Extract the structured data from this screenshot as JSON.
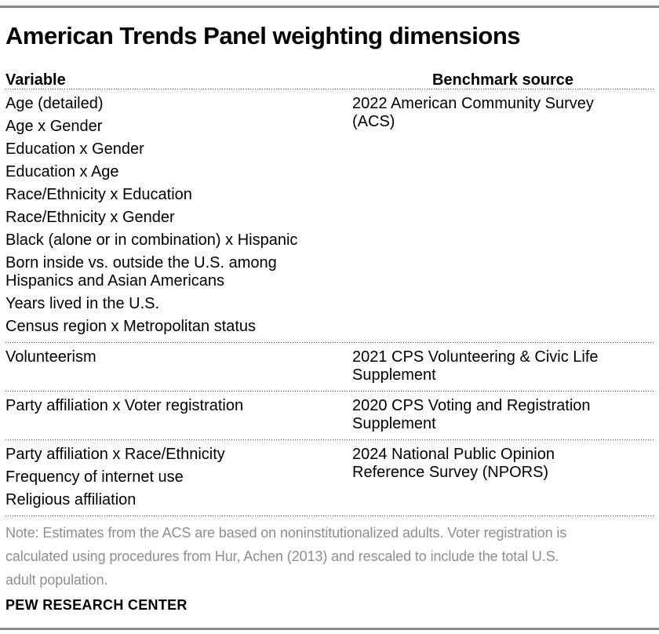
{
  "title": "American Trends Panel weighting dimensions",
  "table": {
    "col1_header": "Variable",
    "col2_header": "Benchmark source",
    "sections": [
      {
        "variables": [
          "Age (detailed)",
          "Age x Gender",
          "Education x Gender",
          "Education x Age",
          "Race/Ethnicity x Education",
          "Race/Ethnicity x Gender",
          "Black (alone or in combination) x Hispanic",
          "Born inside vs. outside the U.S. among\nHispanics and Asian Americans",
          "Years lived in the U.S.",
          "Census region x Metropolitan status"
        ],
        "source": "2022 American Community Survey\n(ACS)"
      },
      {
        "variables": [
          "Volunteerism"
        ],
        "source": "2021 CPS Volunteering & Civic Life\nSupplement"
      },
      {
        "variables": [
          "Party affiliation x Voter registration"
        ],
        "source": "2020 CPS Voting and Registration\nSupplement"
      },
      {
        "variables": [
          "Party affiliation x Race/Ethnicity",
          "Frequency of internet use",
          "Religious affiliation"
        ],
        "source": "2024 National Public Opinion\nReference Survey (NPORS)"
      }
    ]
  },
  "note": "Note: Estimates from the ACS are based on noninstitutionalized adults. Voter registration is\ncalculated using procedures from Hur, Achen (2013) and rescaled to include the total U.S.\nadult population.",
  "footer": "PEW RESEARCH CENTER",
  "colors": {
    "accent_bar": "#8a8a8a",
    "note_text": "#8e8e8e",
    "body_text": "#000000",
    "divider_dots": "#4d4d4d"
  },
  "chart_data": {
    "type": "table",
    "title": "American Trends Panel weighting dimensions",
    "columns": [
      "Variable",
      "Benchmark source"
    ],
    "rows": [
      {
        "variables": [
          "Age (detailed)",
          "Age x Gender",
          "Education x Gender",
          "Education x Age",
          "Race/Ethnicity x Education",
          "Race/Ethnicity x Gender",
          "Black (alone or in combination) x Hispanic",
          "Born inside vs. outside the U.S. among Hispanics and Asian Americans",
          "Years lived in the U.S.",
          "Census region x Metropolitan status"
        ],
        "benchmark_source": "2022 American Community Survey (ACS)"
      },
      {
        "variables": [
          "Volunteerism"
        ],
        "benchmark_source": "2021 CPS Volunteering & Civic Life Supplement"
      },
      {
        "variables": [
          "Party affiliation x Voter registration"
        ],
        "benchmark_source": "2020 CPS Voting and Registration Supplement"
      },
      {
        "variables": [
          "Party affiliation x Race/Ethnicity",
          "Frequency of internet use",
          "Religious affiliation"
        ],
        "benchmark_source": "2024 National Public Opinion Reference Survey (NPORS)"
      }
    ],
    "note": "Note: Estimates from the ACS are based on noninstitutionalized adults. Voter registration is calculated using procedures from Hur, Achen (2013) and rescaled to include the total U.S. adult population.",
    "source": "PEW RESEARCH CENTER"
  }
}
